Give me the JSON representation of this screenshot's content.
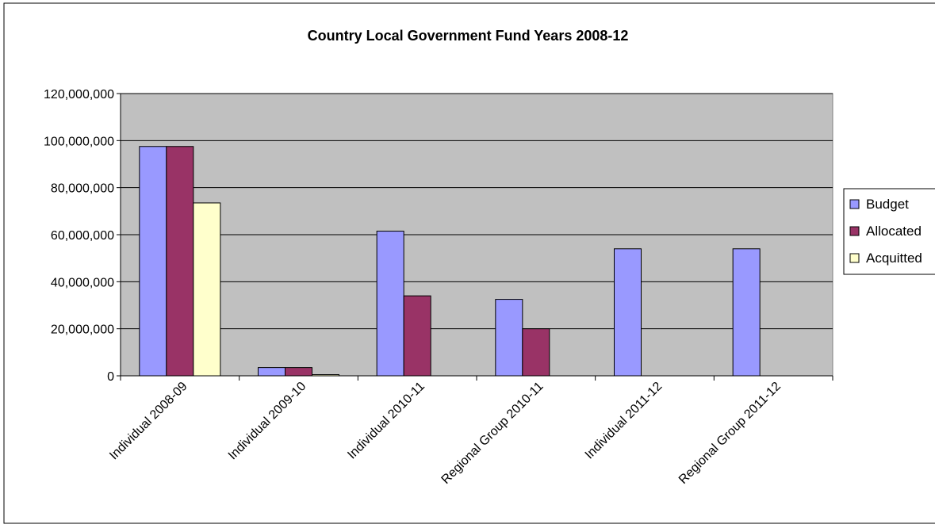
{
  "chart_data": {
    "type": "bar",
    "title": "Country Local Government Fund Years 2008-12",
    "xlabel": "",
    "ylabel": "",
    "categories": [
      "Individual 2008-09",
      "Individual 2009-10",
      "Individual 2010-11",
      "Regional Group 2010-11",
      "Individual 2011-12",
      "Regional Group 2011-12"
    ],
    "series": [
      {
        "name": "Budget",
        "color": "#9999ff",
        "values": [
          97500000,
          3500000,
          61500000,
          32500000,
          54000000,
          54000000
        ]
      },
      {
        "name": "Allocated",
        "color": "#993366",
        "values": [
          97500000,
          3500000,
          34000000,
          20000000,
          0,
          0
        ]
      },
      {
        "name": "Acquitted",
        "color": "#ffffcc",
        "values": [
          73500000,
          500000,
          0,
          0,
          0,
          0
        ]
      }
    ],
    "ylim": [
      0,
      120000000
    ],
    "yticks": [
      0,
      20000000,
      40000000,
      60000000,
      80000000,
      100000000,
      120000000
    ],
    "ytick_labels": [
      "0",
      "20,000,000",
      "40,000,000",
      "60,000,000",
      "80,000,000",
      "100,000,000",
      "120,000,000"
    ],
    "grid": true,
    "legend": "right",
    "plot_background": "#c0c0c0"
  }
}
